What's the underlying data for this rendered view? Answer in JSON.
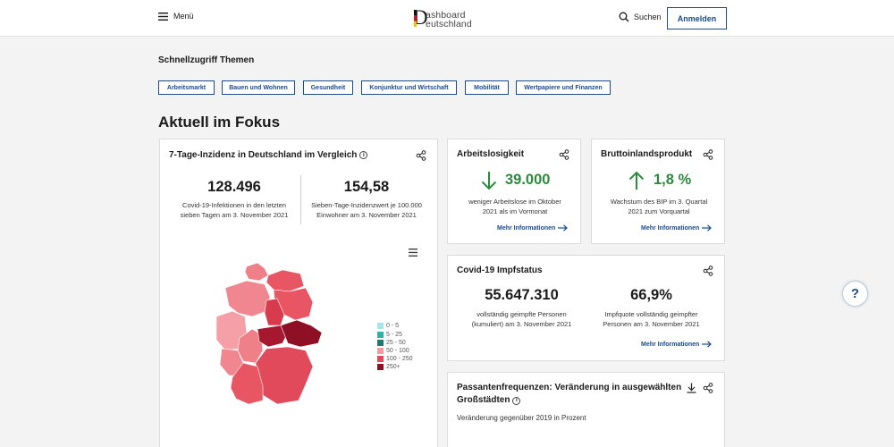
{
  "header": {
    "menu_label": "Menü",
    "logo_letter": "D",
    "logo_line1": "ashboard",
    "logo_line2": "eutschland",
    "search_label": "Suchen",
    "login_label": "Anmelden"
  },
  "quick": {
    "title": "Schnellzugriff Themen",
    "chips": [
      "Arbeitsmarkt",
      "Bauen und Wohnen",
      "Gesundheit",
      "Konjunktur und Wirtschaft",
      "Mobilität",
      "Wertpapiere und Finanzen"
    ]
  },
  "fokus_title": "Aktuell im Fokus",
  "incidence": {
    "title": "7-Tage-Inzidenz in Deutschland im Vergleich",
    "value1": "128.496",
    "desc1_line1": "Covid-19-Infektionen in den letzten",
    "desc1_line2": "sieben Tagen am 3. November 2021",
    "value2": "154,58",
    "desc2_line1": "Sieben-Tage-Inzidenzwert je 100.000",
    "desc2_line2": "Einwohner am 3. November 2021",
    "legend": [
      {
        "label": "0 - 5",
        "color": "#a8e6e6"
      },
      {
        "label": "5 - 25",
        "color": "#2bb3a8"
      },
      {
        "label": "25 - 50",
        "color": "#1f7a6c"
      },
      {
        "label": "50 - 100",
        "color": "#f39aa2"
      },
      {
        "label": "100 - 250",
        "color": "#e04a5a"
      },
      {
        "label": "250+",
        "color": "#8f1024"
      }
    ]
  },
  "unemployment": {
    "title": "Arbeitslosigkeit",
    "value": "39.000",
    "desc_line1": "weniger Arbeitslose im Oktober",
    "desc_line2": "2021 als im Vormonat",
    "more": "Mehr Informationen"
  },
  "gdp": {
    "title": "Bruttoinlandsprodukt",
    "value": "1,8 %",
    "desc_line1": "Wachstum des BIP im 3. Quartal",
    "desc_line2": "2021 zum Vorquartal",
    "more": "Mehr Informationen"
  },
  "vaccine": {
    "title": "Covid-19 Impfstatus",
    "value1": "55.647.310",
    "desc1_line1": "vollständig geimpfte Personen",
    "desc1_line2": "(kumuliert) am 3. November 2021",
    "value2": "66,9%",
    "desc2_line1": "Impfquote vollständig geimpfter",
    "desc2_line2": "Personen am 3. November 2021",
    "more": "Mehr Informationen"
  },
  "passanten": {
    "title_line1": "Passantenfrequenzen: Veränderung in ausgewählten",
    "title_line2": "Großstädten",
    "subtitle": "Veränderung gegenüber 2019 in Prozent"
  },
  "help_label": "?"
}
